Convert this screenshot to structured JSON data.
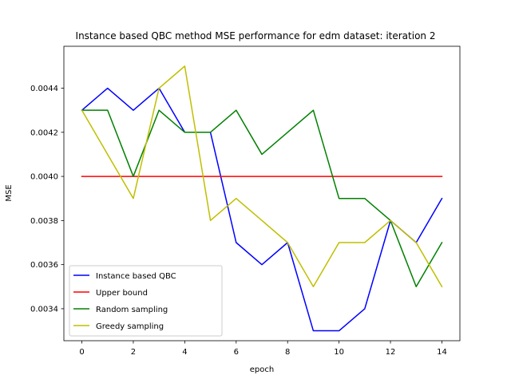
{
  "chart_data": {
    "type": "line",
    "title": "Instance based QBC method MSE performance for edm dataset: iteration 2",
    "xlabel": "epoch",
    "ylabel": "MSE",
    "x": [
      0,
      1,
      2,
      3,
      4,
      5,
      6,
      7,
      8,
      9,
      10,
      11,
      12,
      13,
      14
    ],
    "xlim": [
      -0.7,
      14.7
    ],
    "ylim": [
      0.003255,
      0.00459
    ],
    "xticks": [
      0,
      2,
      4,
      6,
      8,
      10,
      12,
      14
    ],
    "xtick_labels": [
      "0",
      "2",
      "4",
      "6",
      "8",
      "10",
      "12",
      "14"
    ],
    "yticks": [
      0.0034,
      0.0036,
      0.0038,
      0.004,
      0.0042,
      0.0044
    ],
    "ytick_labels": [
      "0.0034",
      "0.0036",
      "0.0038",
      "0.0040",
      "0.0042",
      "0.0044"
    ],
    "grid": false,
    "legend_position": "lower-left",
    "series": [
      {
        "name": "Instance based QBC",
        "color": "#0000ff",
        "values": [
          0.0043,
          0.0044,
          0.0043,
          0.0044,
          0.0042,
          0.0042,
          0.0037,
          0.0036,
          0.0037,
          0.0033,
          0.0033,
          0.0034,
          0.0038,
          0.0037,
          0.0039
        ]
      },
      {
        "name": "Upper bound",
        "color": "#ff0000",
        "values": [
          0.004,
          0.004,
          0.004,
          0.004,
          0.004,
          0.004,
          0.004,
          0.004,
          0.004,
          0.004,
          0.004,
          0.004,
          0.004,
          0.004,
          0.004
        ]
      },
      {
        "name": "Random sampling",
        "color": "#008000",
        "values": [
          0.0043,
          0.0043,
          0.004,
          0.0043,
          0.0042,
          0.0042,
          0.0043,
          0.0041,
          0.0042,
          0.0043,
          0.0039,
          0.0039,
          0.0038,
          0.0035,
          0.0037
        ]
      },
      {
        "name": "Greedy sampling",
        "color": "#bfbf00",
        "values": [
          0.0043,
          0.0041,
          0.0039,
          0.0044,
          0.0045,
          0.0038,
          0.0039,
          0.0038,
          0.0037,
          0.0035,
          0.0037,
          0.0037,
          0.0038,
          0.0037,
          0.0035
        ]
      }
    ]
  }
}
